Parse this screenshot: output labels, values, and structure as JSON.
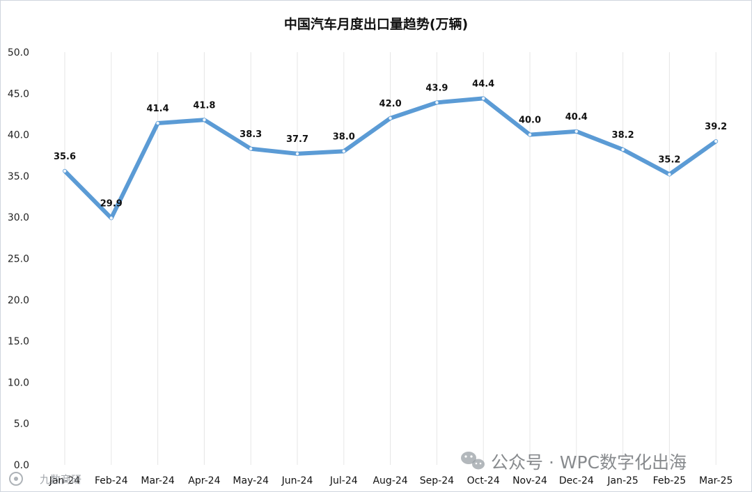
{
  "chart_data": {
    "type": "line",
    "title": "中国汽车月度出口量趋势(万辆)",
    "categories": [
      "Jan-24",
      "Feb-24",
      "Mar-24",
      "Apr-24",
      "May-24",
      "Jun-24",
      "Jul-24",
      "Aug-24",
      "Sep-24",
      "Oct-24",
      "Nov-24",
      "Dec-24",
      "Jan-25",
      "Feb-25",
      "Mar-25"
    ],
    "series": [
      {
        "values": [
          35.6,
          29.9,
          41.4,
          41.8,
          38.3,
          37.7,
          38.0,
          42.0,
          43.9,
          44.4,
          40.0,
          40.4,
          38.2,
          35.2,
          39.2
        ]
      }
    ],
    "data_labels": [
      "35.6",
      "29.9",
      "41.4",
      "41.8",
      "38.3",
      "37.7",
      "38.0",
      "42.0",
      "43.9",
      "44.4",
      "40.0",
      "40.4",
      "38.2",
      "35.2",
      "39.2"
    ],
    "ylim": [
      0,
      50
    ],
    "yticks": [
      "0.0",
      "5.0",
      "10.0",
      "15.0",
      "20.0",
      "25.0",
      "30.0",
      "35.0",
      "40.0",
      "45.0",
      "50.0"
    ],
    "xlabel": "",
    "ylabel": "",
    "grid": "vertical",
    "legend": "none",
    "line_color": "#5b9bd5"
  },
  "watermark": {
    "main": "公众号 · WPC数字化出海",
    "small": "九数商研",
    "icon": "wechat-icon"
  }
}
